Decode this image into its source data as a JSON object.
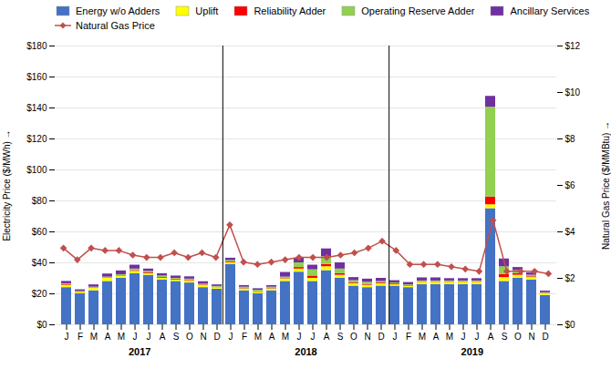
{
  "chart_data": {
    "type": "bar",
    "stacked": true,
    "categories": [
      "J",
      "F",
      "M",
      "A",
      "M",
      "J",
      "J",
      "A",
      "S",
      "O",
      "N",
      "D",
      "J",
      "F",
      "M",
      "A",
      "M",
      "J",
      "J",
      "A",
      "S",
      "O",
      "N",
      "D",
      "J",
      "F",
      "M",
      "A",
      "M",
      "J",
      "J",
      "A",
      "S",
      "O",
      "N",
      "D"
    ],
    "annotations": [
      "2017",
      "2018",
      "2019"
    ],
    "ylabel": "Electricity Price ($/MWh)",
    "y2label": "Natural Gas Price ($/MMBtu)",
    "ylim": [
      0,
      180
    ],
    "yticks": [
      {
        "value": 0,
        "label": "$0"
      },
      {
        "value": 20,
        "label": "$20"
      },
      {
        "value": 40,
        "label": "$40"
      },
      {
        "value": 60,
        "label": "$60"
      },
      {
        "value": 80,
        "label": "$80"
      },
      {
        "value": 100,
        "label": "$100"
      },
      {
        "value": 120,
        "label": "$120"
      },
      {
        "value": 140,
        "label": "$140"
      },
      {
        "value": 160,
        "label": "$160"
      },
      {
        "value": 180,
        "label": "$180"
      }
    ],
    "y2lim": [
      0,
      12
    ],
    "y2ticks": [
      {
        "value": 0,
        "label": "$0"
      },
      {
        "value": 2,
        "label": "$2"
      },
      {
        "value": 4,
        "label": "$4"
      },
      {
        "value": 6,
        "label": "$6"
      },
      {
        "value": 8,
        "label": "$8"
      },
      {
        "value": 10,
        "label": "$10"
      },
      {
        "value": 12,
        "label": "$12"
      }
    ],
    "grid": true,
    "legend": "upper left",
    "series": [
      {
        "name": "Energy w/o Adders",
        "color": "#4472C4",
        "values": [
          24,
          20,
          22,
          28,
          30,
          33,
          32,
          29,
          28,
          27,
          24,
          23,
          39,
          22,
          20,
          22,
          28,
          34,
          28,
          35,
          30,
          25,
          24,
          25,
          25,
          24,
          26,
          26,
          26,
          26,
          26,
          75,
          28,
          30,
          29,
          19
        ]
      },
      {
        "name": "Uplift",
        "color": "#FFFF00",
        "values": [
          1.5,
          1.0,
          1.5,
          2.0,
          1.5,
          1.5,
          1.0,
          1.0,
          1.0,
          1.5,
          1.5,
          1.0,
          1.0,
          1.0,
          1.0,
          1.0,
          1.5,
          2.0,
          2.0,
          2.5,
          2.0,
          1.5,
          1.5,
          1.5,
          1.0,
          1.0,
          1.5,
          1.5,
          1.5,
          1.5,
          1.5,
          2.5,
          2.5,
          2.0,
          1.5,
          1.0
        ]
      },
      {
        "name": "Reliability Adder",
        "color": "#FF0000",
        "values": [
          0.5,
          0.3,
          0.3,
          0.3,
          0.3,
          0.5,
          0.5,
          0.5,
          0.5,
          0.5,
          0.3,
          0.3,
          0.5,
          0.3,
          0.3,
          0.3,
          0.3,
          1.0,
          1.5,
          1.5,
          1.0,
          0.5,
          0.5,
          0.5,
          0.5,
          0.3,
          0.3,
          0.3,
          0.3,
          0.3,
          0.3,
          5.0,
          2.0,
          1.0,
          0.5,
          0.3
        ]
      },
      {
        "name": "Operating Reserve Adder",
        "color": "#92D050",
        "values": [
          0.5,
          0.3,
          0.5,
          0.5,
          0.5,
          1.0,
          1.0,
          1.0,
          0.5,
          0.5,
          0.5,
          0.5,
          1.0,
          1.0,
          1.0,
          1.0,
          1.0,
          3.0,
          4.0,
          5.0,
          3.0,
          1.5,
          1.5,
          1.0,
          0.5,
          0.5,
          0.5,
          0.5,
          0.5,
          0.5,
          0.5,
          58.0,
          5.0,
          2.0,
          1.0,
          0.5
        ]
      },
      {
        "name": "Ancillary Services",
        "color": "#7030A0",
        "values": [
          1.5,
          1.0,
          1.5,
          2.0,
          2.5,
          2.5,
          1.5,
          1.5,
          1.5,
          1.5,
          1.5,
          1.0,
          1.5,
          1.0,
          1.0,
          1.0,
          3.0,
          3.0,
          3.0,
          5.0,
          4.0,
          2.0,
          2.0,
          2.0,
          1.5,
          1.5,
          2.0,
          2.0,
          1.5,
          1.5,
          1.5,
          7.0,
          5.0,
          2.0,
          1.5,
          1.0
        ]
      },
      {
        "name": "Natural Gas Price",
        "type": "line",
        "axis": "y2",
        "color": "#C0504D",
        "marker": "diamond",
        "values": [
          3.3,
          2.8,
          3.3,
          3.2,
          3.2,
          3.0,
          2.9,
          2.9,
          3.1,
          2.9,
          3.1,
          2.9,
          4.3,
          2.7,
          2.6,
          2.7,
          2.8,
          2.9,
          2.9,
          2.9,
          3.0,
          3.1,
          3.3,
          3.6,
          3.2,
          2.6,
          2.6,
          2.6,
          2.5,
          2.4,
          2.3,
          4.5,
          2.3,
          2.3,
          2.3,
          2.2
        ]
      }
    ]
  }
}
